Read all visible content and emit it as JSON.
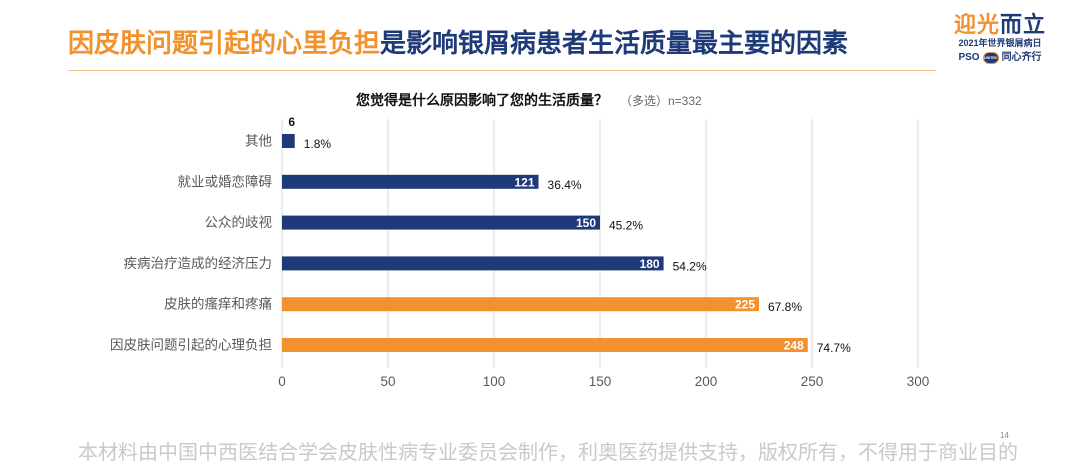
{
  "slide": {
    "title_highlight": "因皮肤问题引起的心里负担",
    "title_rest": "是影响银屑病患者生活质量最主要的因素",
    "page_number": "14",
    "footer": "本材料由中国中西医结合学会皮肤性病专业委员会制作，利奥医药提供支持，版权所有，不得用于商业目的"
  },
  "logo": {
    "headline_a": "迎光",
    "headline_b": "而立",
    "subline": "2021年世界银屑病日",
    "pso": "PSO",
    "badge": "UNITED",
    "slogan": "同心齐行"
  },
  "colors": {
    "accent_orange": "#F2922E",
    "brand_navy": "#1E3A78"
  },
  "chart_data": {
    "type": "bar",
    "orientation": "horizontal",
    "title": "您觉得是什么原因影响了您的生活质量？",
    "note": "（多选）n=332",
    "categories": [
      "其他",
      "就业或婚恋障碍",
      "公众的歧视",
      "疾病治疗造成的经济压力",
      "皮肤的瘙痒和疼痛",
      "因皮肤问题引起的心理负担"
    ],
    "values": [
      6,
      121,
      150,
      180,
      225,
      248
    ],
    "percent_labels": [
      "1.8%",
      "36.4%",
      "45.2%",
      "54.2%",
      "67.8%",
      "74.7%"
    ],
    "bar_colors": [
      "#1E3A78",
      "#1E3A78",
      "#1E3A78",
      "#1E3A78",
      "#F2922E",
      "#F2922E"
    ],
    "xlim": [
      0,
      300
    ],
    "xticks": [
      0,
      50,
      100,
      150,
      200,
      250,
      300
    ],
    "grid": "vertical",
    "legend": "none"
  }
}
